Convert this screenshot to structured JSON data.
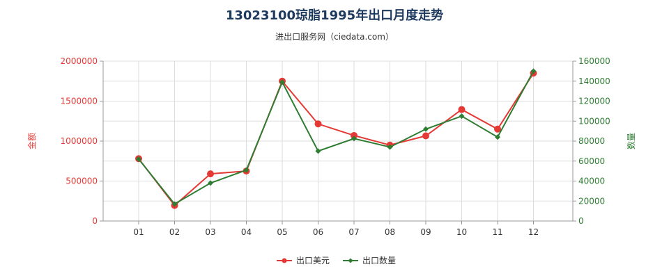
{
  "chart_data": {
    "type": "line",
    "title": "13023100琼脂1995年出口月度走势",
    "subtitle": "进出口服务网（ciedata.com）",
    "categories": [
      "01",
      "02",
      "03",
      "04",
      "05",
      "06",
      "07",
      "08",
      "09",
      "10",
      "11",
      "12"
    ],
    "y_left": {
      "label": "金额",
      "ylim": [
        0,
        2000000
      ],
      "ticks": [
        "0",
        "500000",
        "1000000",
        "1500000",
        "2000000"
      ],
      "color": "#e53935"
    },
    "y_right": {
      "label": "数量",
      "ylim": [
        0,
        160000
      ],
      "ticks": [
        "0",
        "20000",
        "40000",
        "60000",
        "80000",
        "100000",
        "120000",
        "140000",
        "160000"
      ],
      "color": "#2e7d32"
    },
    "series": [
      {
        "name": "出口美元",
        "axis": "left",
        "color": "#e53935",
        "values": [
          780000,
          195000,
          590000,
          625000,
          1750000,
          1215000,
          1070000,
          950000,
          1065000,
          1395000,
          1150000,
          1850000
        ]
      },
      {
        "name": "出口数量",
        "axis": "right",
        "color": "#2e7d32",
        "values": [
          62000,
          17000,
          38000,
          51000,
          139000,
          70000,
          82500,
          74000,
          92000,
          105000,
          84000,
          150000
        ]
      }
    ],
    "grid": true,
    "legend_position": "bottom"
  }
}
